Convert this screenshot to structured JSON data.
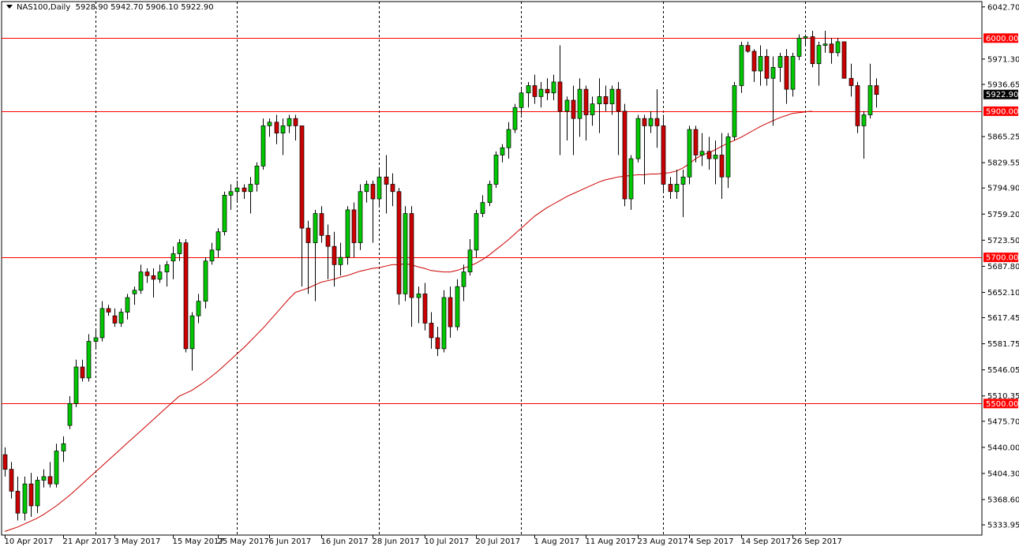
{
  "header": {
    "symbol": "NAS100,Daily",
    "ohlc": "5928.90 5942.70 5906.10 5922.90"
  },
  "colors": {
    "bull": "#00c800",
    "bear": "#cc0000",
    "level": "#ff0000",
    "ma": "#cc0000",
    "grid": "#000000",
    "current_price_bg": "#000000"
  },
  "chart_data": {
    "type": "candlestick",
    "title": "NAS100,Daily",
    "ylim": [
      5320,
      6050
    ],
    "y_ticks": [
      "6042.70",
      "5971.30",
      "5936.65",
      "5865.25",
      "5829.55",
      "5794.90",
      "5759.20",
      "5723.50",
      "5687.80",
      "5652.10",
      "5617.45",
      "5581.75",
      "5546.05",
      "5510.35",
      "5475.70",
      "5440.00",
      "5404.30",
      "5368.60",
      "5333.95"
    ],
    "x_labels": [
      "10 Apr 2017",
      "21 Apr 2017",
      "3 May 2017",
      "15 May 2017",
      "25 May 2017",
      "6 Jun 2017",
      "16 Jun 2017",
      "28 Jun 2017",
      "10 Jul 2017",
      "20 Jul 2017",
      "1 Aug 2017",
      "11 Aug 2017",
      "23 Aug 2017",
      "4 Sep 2017",
      "14 Sep 2017",
      "26 Sep 2017"
    ],
    "x_label_bar_index": [
      0,
      9,
      17,
      26,
      33,
      41,
      49,
      57,
      65,
      73,
      82,
      90,
      98,
      106,
      114,
      122
    ],
    "period_separator_bar_index": [
      14,
      36,
      58,
      80,
      102,
      124
    ],
    "levels": [
      {
        "value": 6000.0,
        "label": "6000.00"
      },
      {
        "value": 5900.0,
        "label": "5900.00"
      },
      {
        "value": 5700.0,
        "label": "5700.00"
      },
      {
        "value": 5500.0,
        "label": "5500.00"
      }
    ],
    "current_price": {
      "value": 5922.9,
      "label": "5922.90"
    },
    "candles": [
      [
        5430,
        5440,
        5400,
        5410
      ],
      [
        5410,
        5420,
        5370,
        5380
      ],
      [
        5380,
        5400,
        5340,
        5350
      ],
      [
        5350,
        5400,
        5340,
        5390
      ],
      [
        5390,
        5405,
        5345,
        5360
      ],
      [
        5360,
        5400,
        5350,
        5395
      ],
      [
        5395,
        5410,
        5385,
        5400
      ],
      [
        5400,
        5420,
        5385,
        5390
      ],
      [
        5390,
        5445,
        5385,
        5435
      ],
      [
        5435,
        5455,
        5420,
        5445
      ],
      [
        5470,
        5510,
        5465,
        5500
      ],
      [
        5500,
        5560,
        5495,
        5550
      ],
      [
        5550,
        5560,
        5530,
        5535
      ],
      [
        5535,
        5595,
        5530,
        5585
      ],
      [
        5585,
        5600,
        5575,
        5590
      ],
      [
        5590,
        5640,
        5585,
        5630
      ],
      [
        5630,
        5635,
        5620,
        5625
      ],
      [
        5620,
        5630,
        5605,
        5610
      ],
      [
        5610,
        5630,
        5605,
        5625
      ],
      [
        5625,
        5650,
        5615,
        5645
      ],
      [
        5650,
        5660,
        5635,
        5655
      ],
      [
        5655,
        5690,
        5650,
        5680
      ],
      [
        5680,
        5685,
        5665,
        5675
      ],
      [
        5675,
        5685,
        5645,
        5670
      ],
      [
        5670,
        5690,
        5665,
        5680
      ],
      [
        5680,
        5695,
        5660,
        5690
      ],
      [
        5695,
        5715,
        5670,
        5705
      ],
      [
        5705,
        5725,
        5695,
        5720
      ],
      [
        5720,
        5725,
        5570,
        5575
      ],
      [
        5575,
        5625,
        5545,
        5620
      ],
      [
        5620,
        5650,
        5610,
        5640
      ],
      [
        5640,
        5700,
        5630,
        5695
      ],
      [
        5695,
        5720,
        5690,
        5710
      ],
      [
        5710,
        5740,
        5700,
        5735
      ],
      [
        5735,
        5790,
        5730,
        5785
      ],
      [
        5785,
        5800,
        5765,
        5790
      ],
      [
        5790,
        5805,
        5775,
        5795
      ],
      [
        5795,
        5800,
        5780,
        5790
      ],
      [
        5790,
        5810,
        5760,
        5800
      ],
      [
        5800,
        5830,
        5790,
        5825
      ],
      [
        5825,
        5890,
        5820,
        5880
      ],
      [
        5880,
        5890,
        5865,
        5885
      ],
      [
        5885,
        5895,
        5855,
        5870
      ],
      [
        5870,
        5890,
        5840,
        5880
      ],
      [
        5880,
        5895,
        5870,
        5890
      ],
      [
        5890,
        5895,
        5860,
        5880
      ],
      [
        5880,
        5880,
        5660,
        5740
      ],
      [
        5740,
        5750,
        5650,
        5720
      ],
      [
        5720,
        5765,
        5640,
        5760
      ],
      [
        5760,
        5770,
        5720,
        5730
      ],
      [
        5730,
        5745,
        5670,
        5715
      ],
      [
        5715,
        5735,
        5660,
        5690
      ],
      [
        5690,
        5720,
        5675,
        5700
      ],
      [
        5700,
        5770,
        5690,
        5765
      ],
      [
        5765,
        5775,
        5700,
        5720
      ],
      [
        5720,
        5800,
        5710,
        5790
      ],
      [
        5790,
        5805,
        5775,
        5800
      ],
      [
        5800,
        5805,
        5720,
        5780
      ],
      [
        5780,
        5820,
        5770,
        5810
      ],
      [
        5810,
        5840,
        5760,
        5800
      ],
      [
        5800,
        5815,
        5770,
        5790
      ],
      [
        5790,
        5795,
        5635,
        5650
      ],
      [
        5650,
        5770,
        5640,
        5760
      ],
      [
        5760,
        5770,
        5605,
        5645
      ],
      [
        5645,
        5660,
        5610,
        5650
      ],
      [
        5650,
        5665,
        5600,
        5610
      ],
      [
        5610,
        5625,
        5575,
        5590
      ],
      [
        5590,
        5605,
        5565,
        5575
      ],
      [
        5575,
        5655,
        5570,
        5645
      ],
      [
        5645,
        5660,
        5590,
        5605
      ],
      [
        5605,
        5670,
        5600,
        5660
      ],
      [
        5660,
        5690,
        5640,
        5680
      ],
      [
        5680,
        5725,
        5675,
        5710
      ],
      [
        5710,
        5765,
        5700,
        5760
      ],
      [
        5760,
        5785,
        5755,
        5775
      ],
      [
        5775,
        5805,
        5770,
        5800
      ],
      [
        5800,
        5845,
        5795,
        5840
      ],
      [
        5840,
        5855,
        5830,
        5850
      ],
      [
        5850,
        5885,
        5835,
        5875
      ],
      [
        5875,
        5910,
        5870,
        5905
      ],
      [
        5905,
        5930,
        5895,
        5925
      ],
      [
        5925,
        5940,
        5905,
        5935
      ],
      [
        5935,
        5950,
        5910,
        5920
      ],
      [
        5920,
        5940,
        5905,
        5930
      ],
      [
        5930,
        5945,
        5915,
        5925
      ],
      [
        5925,
        5950,
        5915,
        5940
      ],
      [
        5940,
        5990,
        5840,
        5900
      ],
      [
        5900,
        5920,
        5860,
        5915
      ],
      [
        5915,
        5935,
        5840,
        5890
      ],
      [
        5890,
        5945,
        5865,
        5930
      ],
      [
        5930,
        5935,
        5860,
        5895
      ],
      [
        5895,
        5920,
        5880,
        5910
      ],
      [
        5910,
        5945,
        5870,
        5920
      ],
      [
        5920,
        5935,
        5900,
        5910
      ],
      [
        5910,
        5935,
        5895,
        5930
      ],
      [
        5930,
        5940,
        5840,
        5900
      ],
      [
        5900,
        5910,
        5770,
        5780
      ],
      [
        5780,
        5840,
        5765,
        5835
      ],
      [
        5835,
        5895,
        5830,
        5890
      ],
      [
        5890,
        5895,
        5800,
        5880
      ],
      [
        5880,
        5900,
        5870,
        5890
      ],
      [
        5890,
        5930,
        5850,
        5880
      ],
      [
        5880,
        5895,
        5790,
        5800
      ],
      [
        5800,
        5810,
        5780,
        5790
      ],
      [
        5790,
        5820,
        5780,
        5800
      ],
      [
        5800,
        5820,
        5755,
        5810
      ],
      [
        5810,
        5880,
        5800,
        5875
      ],
      [
        5875,
        5880,
        5830,
        5840
      ],
      [
        5840,
        5870,
        5825,
        5845
      ],
      [
        5845,
        5865,
        5820,
        5835
      ],
      [
        5835,
        5860,
        5800,
        5840
      ],
      [
        5840,
        5870,
        5780,
        5810
      ],
      [
        5810,
        5870,
        5795,
        5865
      ],
      [
        5865,
        5940,
        5860,
        5935
      ],
      [
        5935,
        5995,
        5925,
        5990
      ],
      [
        5990,
        5995,
        5980,
        5982
      ],
      [
        5982,
        5985,
        5940,
        5955
      ],
      [
        5955,
        5990,
        5935,
        5975
      ],
      [
        5975,
        5985,
        5935,
        5945
      ],
      [
        5945,
        5975,
        5880,
        5960
      ],
      [
        5960,
        5980,
        5940,
        5975
      ],
      [
        5975,
        5985,
        5910,
        5930
      ],
      [
        5930,
        5980,
        5920,
        5975
      ],
      [
        5975,
        6005,
        5970,
        6000
      ],
      [
        6000,
        6005,
        5990,
        6002
      ],
      [
        6002,
        6010,
        5960,
        5965
      ],
      [
        5965,
        5995,
        5935,
        5990
      ],
      [
        5990,
        6010,
        5980,
        5992
      ],
      [
        5992,
        6000,
        5965,
        5980
      ],
      [
        5980,
        6000,
        5975,
        5995
      ],
      [
        5995,
        5995,
        5945,
        5945
      ],
      [
        5945,
        5965,
        5920,
        5935
      ],
      [
        5935,
        5940,
        5870,
        5880
      ],
      [
        5880,
        5900,
        5835,
        5895
      ],
      [
        5895,
        5965,
        5890,
        5935
      ],
      [
        5935,
        5945,
        5905,
        5922.9
      ]
    ],
    "ma": {
      "name": "",
      "start_index": 0,
      "values": [
        5325,
        5328,
        5331,
        5335,
        5339,
        5343,
        5348,
        5354,
        5360,
        5367,
        5374,
        5382,
        5390,
        5398,
        5406,
        5414,
        5422,
        5430,
        5438,
        5446,
        5454,
        5462,
        5470,
        5478,
        5486,
        5494,
        5502,
        5510,
        5514,
        5518,
        5524,
        5530,
        5537,
        5544,
        5552,
        5560,
        5568,
        5576,
        5585,
        5594,
        5603,
        5613,
        5623,
        5633,
        5643,
        5652,
        5655,
        5658,
        5662,
        5666,
        5668,
        5670,
        5673,
        5675,
        5678,
        5681,
        5683,
        5685,
        5686,
        5688,
        5690,
        5690,
        5691,
        5690,
        5687,
        5685,
        5682,
        5681,
        5680,
        5680,
        5682,
        5685,
        5688,
        5692,
        5697,
        5703,
        5710,
        5717,
        5724,
        5732,
        5740,
        5748,
        5756,
        5762,
        5768,
        5773,
        5778,
        5783,
        5787,
        5791,
        5795,
        5799,
        5803,
        5806,
        5808,
        5810,
        5811,
        5812,
        5813,
        5813,
        5814,
        5814,
        5815,
        5816,
        5818,
        5822,
        5828,
        5835,
        5840,
        5843,
        5847,
        5852,
        5856,
        5860,
        5864,
        5869,
        5874,
        5879,
        5883,
        5887,
        5891,
        5894,
        5897,
        5898,
        5899,
        5900
      ]
    }
  }
}
